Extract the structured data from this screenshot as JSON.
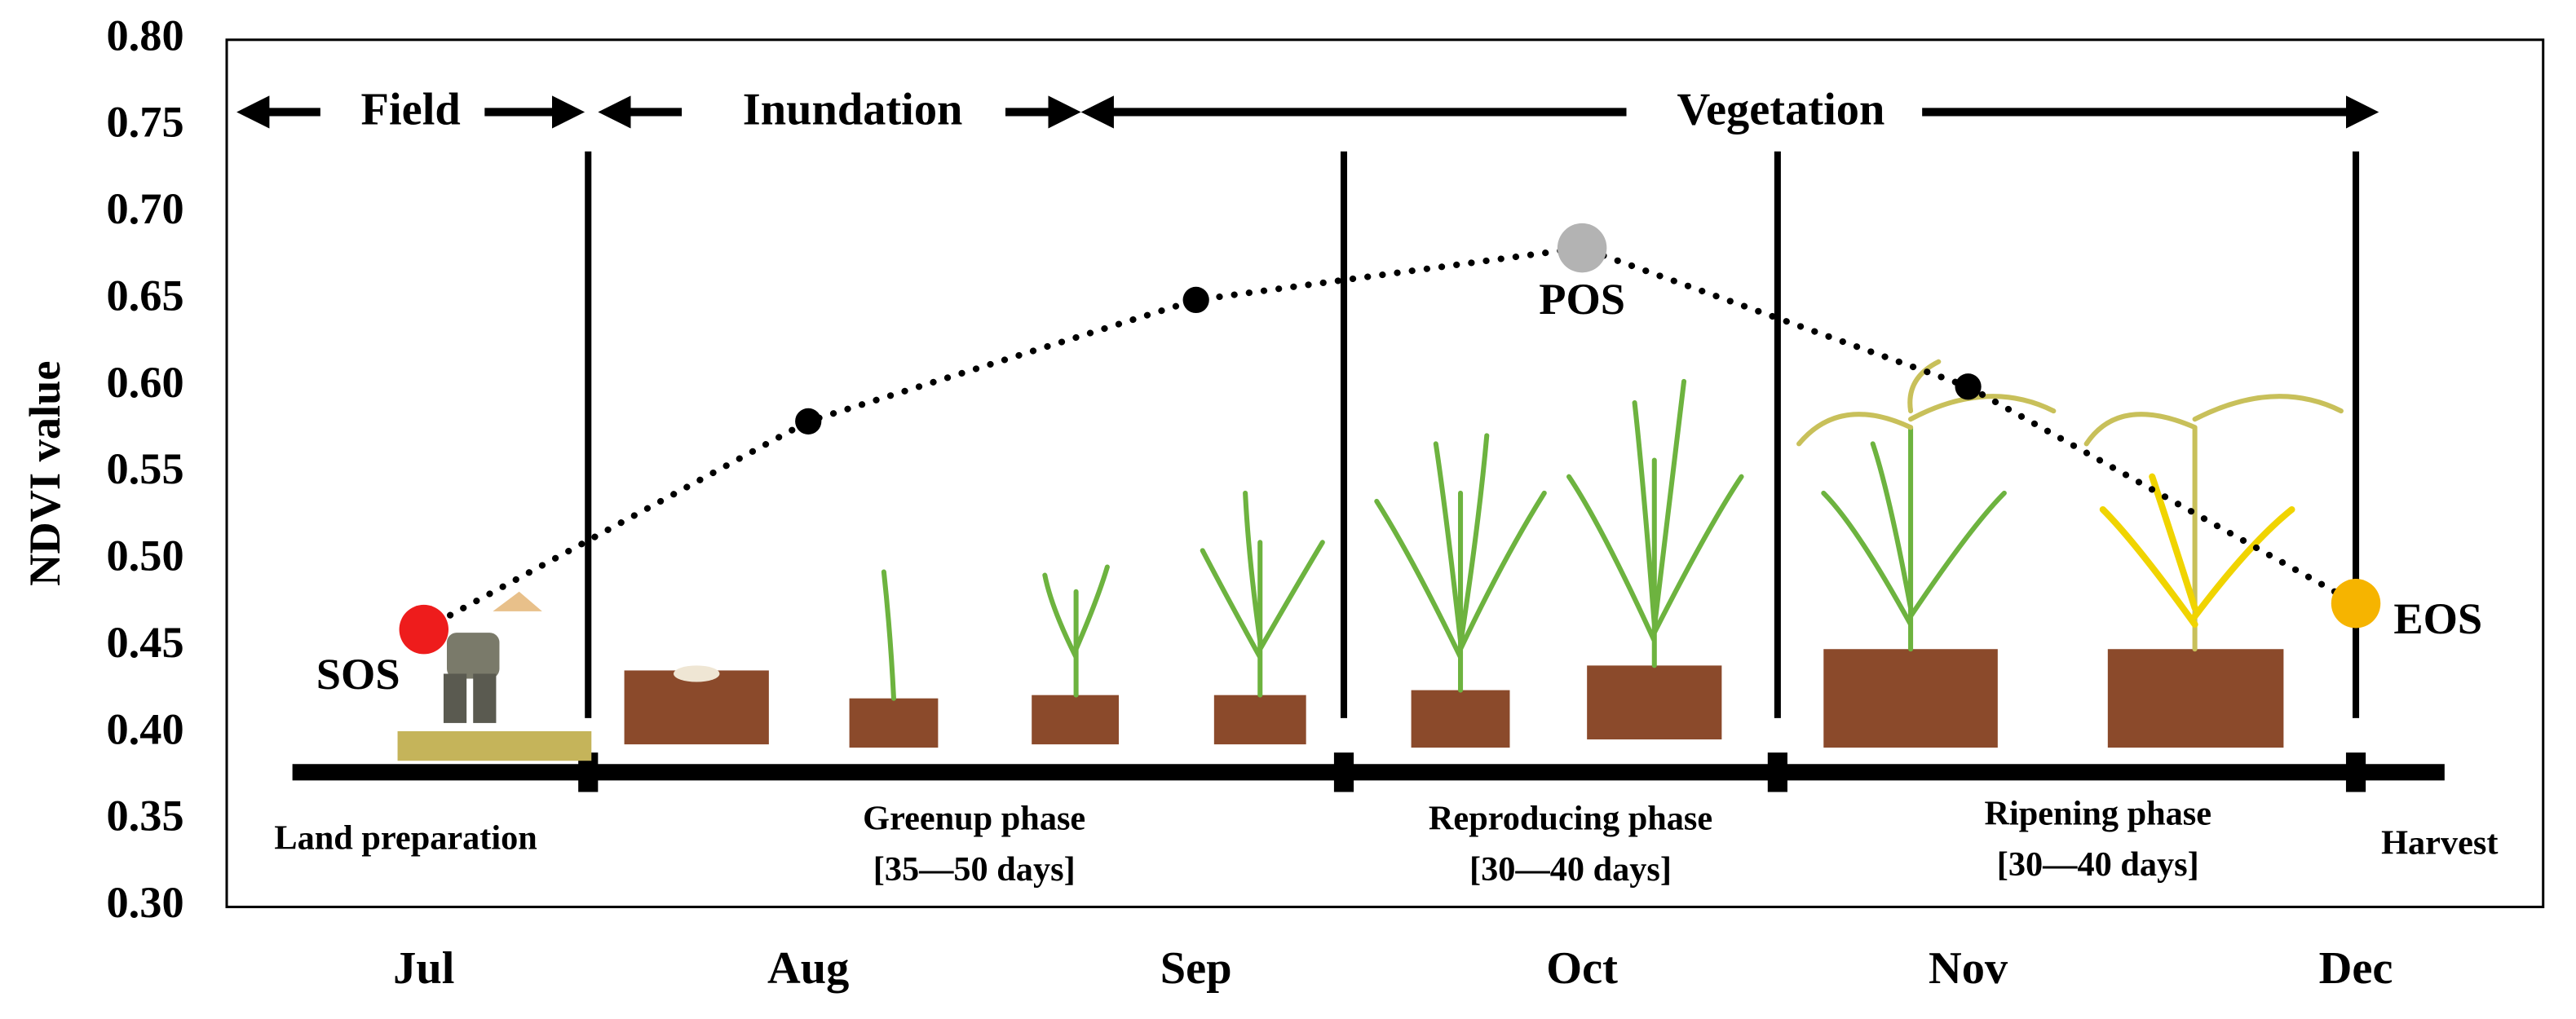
{
  "chart_data": {
    "type": "line",
    "y_label": "NDVI value",
    "categories": [
      "Jul",
      "Aug",
      "Sep",
      "Oct",
      "Nov",
      "Dec"
    ],
    "values": [
      0.46,
      0.58,
      0.65,
      0.68,
      0.6,
      0.475
    ],
    "color": "#000000",
    "point_colors": [
      "#ee1c1c",
      "#000000",
      "#000000",
      "#b3b3b3",
      "#000000",
      "#f6b400"
    ],
    "point_labels": [
      "SOS",
      null,
      null,
      "POS",
      null,
      "EOS"
    ],
    "ylim": [
      0.3,
      0.8
    ],
    "yticks": [
      {
        "value": 0.3,
        "label": "0.30"
      },
      {
        "value": 0.35,
        "label": "0.35"
      },
      {
        "value": 0.4,
        "label": "0.40"
      },
      {
        "value": 0.45,
        "label": "0.45"
      },
      {
        "value": 0.5,
        "label": "0.50"
      },
      {
        "value": 0.55,
        "label": "0.55"
      },
      {
        "value": 0.6,
        "label": "0.60"
      },
      {
        "value": 0.65,
        "label": "0.65"
      },
      {
        "value": 0.7,
        "label": "0.70"
      },
      {
        "value": 0.75,
        "label": "0.75"
      },
      {
        "value": 0.8,
        "label": "0.80"
      }
    ],
    "stages": [
      "Field",
      "Inundation",
      "Vegetation"
    ],
    "phases": [
      {
        "name": "Land preparation"
      },
      {
        "name": "Greenup phase",
        "duration": "[35—50 days]"
      },
      {
        "name": "Reproducing phase",
        "duration": "[30—40 days]"
      },
      {
        "name": "Ripening phase",
        "duration": "[30—40 days]"
      },
      {
        "name": "Harvest"
      }
    ]
  }
}
